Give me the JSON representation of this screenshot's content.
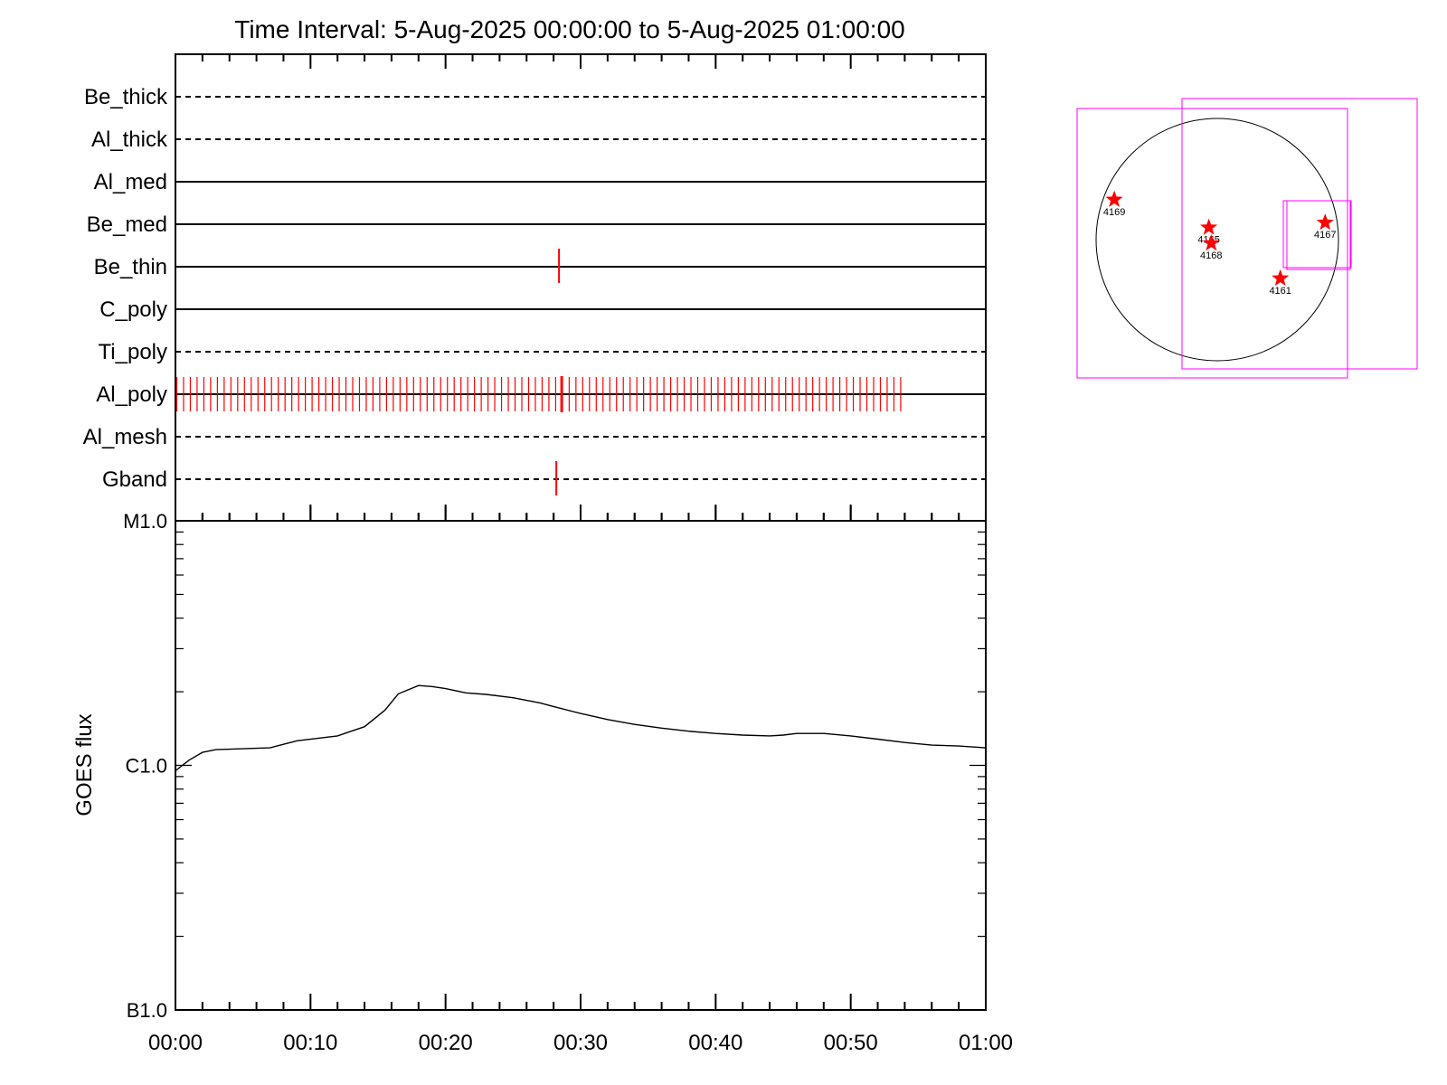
{
  "chart_data": [
    {
      "type": "timeline",
      "title": "Time Interval:  5-Aug-2025 00:00:00 to  5-Aug-2025 01:00:00",
      "x_range_minutes": [
        0,
        60
      ],
      "rows": [
        {
          "label": "Be_thick",
          "style": "dashed",
          "events": []
        },
        {
          "label": "Al_thick",
          "style": "dashed",
          "events": []
        },
        {
          "label": "Al_med",
          "style": "solid",
          "events": []
        },
        {
          "label": "Be_med",
          "style": "solid",
          "events": []
        },
        {
          "label": "Be_thin",
          "style": "solid",
          "events": [
            28.4
          ]
        },
        {
          "label": "C_poly",
          "style": "solid",
          "events": []
        },
        {
          "label": "Ti_poly",
          "style": "dashed",
          "events": []
        },
        {
          "label": "Al_poly",
          "style": "solid",
          "event_range": [
            0.1,
            53.7
          ],
          "event_count": 108,
          "highlight_event": 28.6
        },
        {
          "label": "Al_mesh",
          "style": "dashed",
          "events": []
        },
        {
          "label": "Gband",
          "style": "dashed",
          "events": [
            28.2
          ]
        }
      ],
      "event_color": "#ff0000"
    },
    {
      "type": "line",
      "ylabel": "GOES flux",
      "yscale": "log",
      "ylim": [
        1e-07,
        1e-05
      ],
      "yticks": [
        {
          "label": "B1.0",
          "value": 1e-07
        },
        {
          "label": "C1.0",
          "value": 1e-06
        },
        {
          "label": "M1.0",
          "value": 1e-05
        }
      ],
      "xlim_minutes": [
        0,
        60
      ],
      "xticks": [
        "00:00",
        "00:10",
        "00:20",
        "00:30",
        "00:40",
        "00:50",
        "01:00"
      ],
      "series": [
        {
          "x": [
            0,
            1,
            2,
            3,
            5,
            7,
            9,
            12,
            14,
            15.5,
            16.5,
            18,
            19,
            20,
            21.5,
            23,
            25,
            27,
            28,
            30,
            32,
            34,
            36,
            38,
            40,
            42,
            44,
            45,
            46,
            48,
            50,
            52,
            54,
            56,
            58,
            60
          ],
          "y": [
            9.5e-07,
            1.05e-06,
            1.13e-06,
            1.16e-06,
            1.17e-06,
            1.18e-06,
            1.26e-06,
            1.32e-06,
            1.44e-06,
            1.68e-06,
            1.96e-06,
            2.12e-06,
            2.1e-06,
            2.06e-06,
            1.98e-06,
            1.95e-06,
            1.89e-06,
            1.8e-06,
            1.74e-06,
            1.63e-06,
            1.54e-06,
            1.47e-06,
            1.42e-06,
            1.38e-06,
            1.35e-06,
            1.33e-06,
            1.32e-06,
            1.33e-06,
            1.35e-06,
            1.35e-06,
            1.32e-06,
            1.28e-06,
            1.24e-06,
            1.21e-06,
            1.2e-06,
            1.18e-06
          ],
          "color": "#000000"
        }
      ]
    },
    {
      "type": "scatter",
      "markers": [
        {
          "label": "4169",
          "x": -0.85,
          "y": 0.33
        },
        {
          "label": "4165",
          "x": -0.07,
          "y": 0.1
        },
        {
          "label": "4168",
          "x": -0.05,
          "y": -0.03
        },
        {
          "label": "4167",
          "x": 0.89,
          "y": 0.14
        },
        {
          "label": "4161",
          "x": 0.52,
          "y": -0.32
        }
      ],
      "marker_color": "#ff0000",
      "box_color": "#ff00ff"
    }
  ]
}
